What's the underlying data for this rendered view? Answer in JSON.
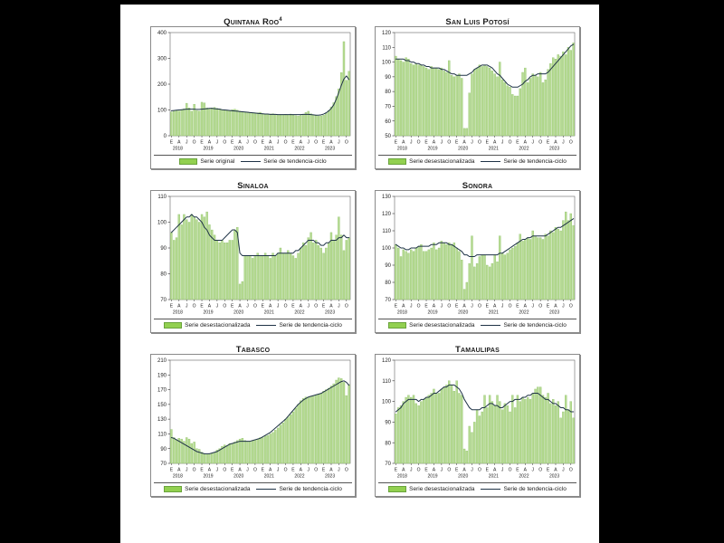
{
  "page": {
    "background": "#000000",
    "panel_background": "#ffffff"
  },
  "colors": {
    "bar_fill": "#b7db93",
    "bar_border": "#8cc066",
    "legend_swatch": "#92d050",
    "trend_line": "#1f3347",
    "plot_frame": "#666666",
    "text": "#1a1a1a"
  },
  "x_axis": {
    "month_tick_labels": [
      "E",
      "A",
      "J",
      "O"
    ],
    "years": [
      "2018",
      "2019",
      "2020",
      "2021",
      "2022",
      "2023"
    ]
  },
  "chart_data": [
    {
      "type": "bar",
      "title": "Quintana Roo",
      "title_sup": "4",
      "bar_label": "Serie original",
      "trend_label": "Serie de tendencia-ciclo",
      "ylim": [
        0,
        400
      ],
      "y_ticks": [
        0,
        100,
        200,
        300,
        400
      ],
      "x_range": "Enero 2018 - Noviembre 2023",
      "values": [
        92,
        95,
        98,
        96,
        100,
        104,
        126,
        108,
        95,
        122,
        98,
        96,
        130,
        127,
        108,
        106,
        108,
        110,
        106,
        104,
        101,
        99,
        98,
        97,
        101,
        103,
        99,
        95,
        93,
        91,
        92,
        90,
        89,
        88,
        89,
        91,
        86,
        84,
        83,
        84,
        85,
        83,
        82,
        81,
        82,
        83,
        82,
        84,
        80,
        78,
        77,
        79,
        83,
        90,
        95,
        85,
        80,
        78,
        76,
        77,
        80,
        88,
        98,
        112,
        128,
        152,
        182,
        245,
        365,
        215,
        250
      ],
      "trend": [
        97,
        98,
        99,
        100,
        101,
        102,
        103,
        103,
        103,
        103,
        102,
        102,
        103,
        104,
        105,
        106,
        106,
        105,
        104,
        103,
        101,
        100,
        99,
        98,
        97,
        96,
        95,
        94,
        93,
        92,
        91,
        90,
        89,
        88,
        87,
        86,
        85,
        84,
        84,
        83,
        83,
        83,
        82,
        82,
        82,
        82,
        82,
        82,
        82,
        82,
        82,
        82,
        83,
        83,
        83,
        82,
        81,
        80,
        80,
        81,
        84,
        89,
        96,
        106,
        120,
        142,
        168,
        196,
        220,
        232,
        218
      ]
    },
    {
      "type": "bar",
      "title": "San Luis Potosí",
      "bar_label": "Serie desestacionalizada",
      "trend_label": "Serie de tendencia-ciclo",
      "ylim": [
        50,
        120
      ],
      "y_ticks": [
        50,
        60,
        70,
        80,
        90,
        100,
        110,
        120
      ],
      "x_range": "Enero 2018 - Noviembre 2023",
      "values": [
        104,
        102,
        101,
        100,
        103,
        102,
        99,
        98,
        99,
        98,
        98,
        97,
        96,
        95,
        97,
        96,
        96,
        95,
        96,
        94,
        93,
        101,
        91,
        90,
        91,
        92,
        89,
        55,
        55,
        79,
        92,
        95,
        96,
        98,
        97,
        98,
        97,
        96,
        94,
        92,
        90,
        100,
        88,
        86,
        84,
        83,
        78,
        77,
        77,
        82,
        93,
        96,
        86,
        89,
        92,
        91,
        90,
        93,
        86,
        88,
        95,
        99,
        103,
        102,
        105,
        104,
        107,
        105,
        110,
        108,
        113
      ],
      "trend": [
        102,
        102,
        102,
        102,
        101,
        101,
        100,
        100,
        99,
        99,
        98,
        98,
        97,
        97,
        96,
        96,
        96,
        96,
        95,
        95,
        94,
        93,
        92,
        92,
        91,
        91,
        91,
        91,
        91,
        92,
        93,
        95,
        96,
        97,
        98,
        98,
        98,
        97,
        96,
        94,
        92,
        91,
        89,
        87,
        85,
        84,
        83,
        83,
        83,
        84,
        85,
        87,
        88,
        90,
        91,
        91,
        92,
        92,
        92,
        92,
        93,
        95,
        97,
        99,
        101,
        103,
        105,
        107,
        109,
        111,
        112
      ]
    },
    {
      "type": "bar",
      "title": "Sinaloa",
      "bar_label": "Serie desestacionalizada",
      "trend_label": "Serie de tendencia-ciclo",
      "ylim": [
        70,
        110
      ],
      "y_ticks": [
        70,
        80,
        90,
        100,
        110
      ],
      "x_range": "Enero 2018 - Noviembre 2023",
      "values": [
        96,
        93,
        94,
        103,
        99,
        103,
        101,
        100,
        103,
        102,
        101,
        100,
        103,
        102,
        104,
        99,
        97,
        95,
        93,
        92,
        93,
        92,
        92,
        93,
        93,
        97,
        98,
        76,
        77,
        87,
        87,
        87,
        86,
        87,
        88,
        87,
        87,
        88,
        87,
        86,
        88,
        87,
        88,
        90,
        88,
        88,
        89,
        88,
        87,
        86,
        88,
        90,
        92,
        91,
        94,
        96,
        92,
        93,
        91,
        90,
        88,
        90,
        92,
        96,
        93,
        95,
        102,
        95,
        89,
        93,
        94
      ],
      "trend": [
        96,
        97,
        98,
        99,
        100,
        101,
        102,
        102,
        103,
        102,
        102,
        101,
        100,
        98,
        97,
        95,
        94,
        93,
        93,
        93,
        93,
        94,
        95,
        96,
        97,
        97,
        96,
        88,
        87,
        87,
        87,
        87,
        87,
        87,
        87,
        87,
        87,
        87,
        87,
        87,
        87,
        87,
        88,
        88,
        88,
        88,
        88,
        88,
        88,
        89,
        89,
        90,
        91,
        92,
        93,
        93,
        93,
        92,
        92,
        91,
        91,
        92,
        92,
        93,
        93,
        93,
        94,
        94,
        95,
        94,
        94
      ]
    },
    {
      "type": "bar",
      "title": "Sonora",
      "bar_label": "Serie desestacionalizada",
      "trend_label": "Serie de tendencia-ciclo",
      "ylim": [
        70,
        130
      ],
      "y_ticks": [
        70,
        80,
        90,
        100,
        110,
        120,
        130
      ],
      "x_range": "Enero 2018 - Noviembre 2023",
      "values": [
        102,
        100,
        95,
        99,
        98,
        97,
        99,
        98,
        100,
        101,
        102,
        98,
        98,
        99,
        100,
        103,
        99,
        100,
        104,
        103,
        102,
        103,
        102,
        103,
        100,
        98,
        93,
        76,
        80,
        91,
        107,
        89,
        91,
        95,
        96,
        96,
        90,
        89,
        91,
        96,
        92,
        107,
        97,
        96,
        97,
        99,
        100,
        101,
        103,
        108,
        104,
        105,
        106,
        105,
        110,
        107,
        106,
        106,
        105,
        108,
        107,
        110,
        109,
        112,
        111,
        110,
        116,
        121,
        116,
        120,
        113
      ],
      "trend": [
        102,
        101,
        100,
        100,
        99,
        99,
        100,
        100,
        100,
        101,
        101,
        101,
        101,
        101,
        102,
        102,
        102,
        103,
        103,
        103,
        103,
        102,
        102,
        101,
        100,
        99,
        98,
        96,
        96,
        95,
        95,
        95,
        96,
        96,
        96,
        96,
        96,
        96,
        96,
        96,
        96,
        97,
        97,
        98,
        99,
        100,
        101,
        102,
        103,
        104,
        105,
        105,
        106,
        106,
        107,
        107,
        107,
        107,
        107,
        107,
        108,
        109,
        110,
        111,
        112,
        112,
        113,
        114,
        115,
        116,
        117
      ]
    },
    {
      "type": "bar",
      "title": "Tabasco",
      "bar_label": "Serie desestacionalizada",
      "trend_label": "Serie de tendencia-ciclo",
      "ylim": [
        70,
        210
      ],
      "y_ticks": [
        70,
        90,
        110,
        130,
        150,
        170,
        190,
        210
      ],
      "x_range": "Enero 2018 - Noviembre 2023",
      "values": [
        116,
        105,
        102,
        104,
        103,
        100,
        105,
        103,
        97,
        99,
        90,
        89,
        85,
        83,
        82,
        83,
        84,
        85,
        88,
        90,
        93,
        95,
        94,
        97,
        97,
        99,
        101,
        103,
        104,
        101,
        100,
        100,
        101,
        102,
        103,
        105,
        105,
        107,
        108,
        110,
        112,
        115,
        118,
        122,
        125,
        130,
        133,
        136,
        140,
        145,
        150,
        155,
        158,
        160,
        160,
        161,
        162,
        163,
        164,
        165,
        168,
        170,
        172,
        175,
        178,
        183,
        186,
        185,
        180,
        162,
        177
      ],
      "trend": [
        105,
        104,
        102,
        100,
        98,
        96,
        94,
        92,
        90,
        88,
        86,
        85,
        84,
        83,
        83,
        83,
        84,
        85,
        86,
        88,
        90,
        92,
        94,
        96,
        97,
        98,
        99,
        100,
        100,
        100,
        100,
        100,
        101,
        102,
        103,
        104,
        106,
        108,
        110,
        112,
        115,
        118,
        121,
        124,
        127,
        130,
        134,
        138,
        142,
        146,
        150,
        153,
        156,
        158,
        160,
        161,
        162,
        163,
        164,
        165,
        167,
        169,
        171,
        173,
        175,
        177,
        179,
        181,
        182,
        180,
        176
      ]
    },
    {
      "type": "bar",
      "title": "Tamaulipas",
      "bar_label": "Serie desestacionalizada",
      "trend_label": "Serie de tendencia-ciclo",
      "ylim": [
        70,
        120
      ],
      "y_ticks": [
        70,
        80,
        90,
        100,
        110,
        120
      ],
      "x_range": "Enero 2018 - Noviembre 2023",
      "values": [
        94,
        97,
        98,
        100,
        102,
        103,
        102,
        103,
        99,
        98,
        100,
        101,
        102,
        103,
        104,
        106,
        104,
        104,
        106,
        107,
        108,
        110,
        108,
        105,
        110,
        104,
        103,
        77,
        76,
        88,
        85,
        90,
        96,
        93,
        95,
        103,
        97,
        103,
        100,
        98,
        103,
        100,
        96,
        99,
        98,
        95,
        103,
        97,
        103,
        100,
        102,
        101,
        102,
        101,
        104,
        106,
        107,
        107,
        103,
        102,
        104,
        99,
        101,
        98,
        100,
        92,
        95,
        103,
        96,
        100,
        92
      ],
      "trend": [
        95,
        96,
        97,
        99,
        100,
        101,
        101,
        101,
        101,
        100,
        101,
        101,
        102,
        102,
        103,
        104,
        104,
        105,
        106,
        107,
        107,
        108,
        108,
        108,
        107,
        106,
        104,
        101,
        99,
        97,
        96,
        96,
        96,
        96,
        97,
        97,
        98,
        99,
        99,
        98,
        98,
        97,
        97,
        98,
        99,
        100,
        100,
        101,
        101,
        101,
        102,
        102,
        103,
        103,
        104,
        104,
        104,
        103,
        102,
        101,
        101,
        100,
        99,
        99,
        98,
        97,
        97,
        96,
        96,
        95,
        95
      ]
    }
  ]
}
